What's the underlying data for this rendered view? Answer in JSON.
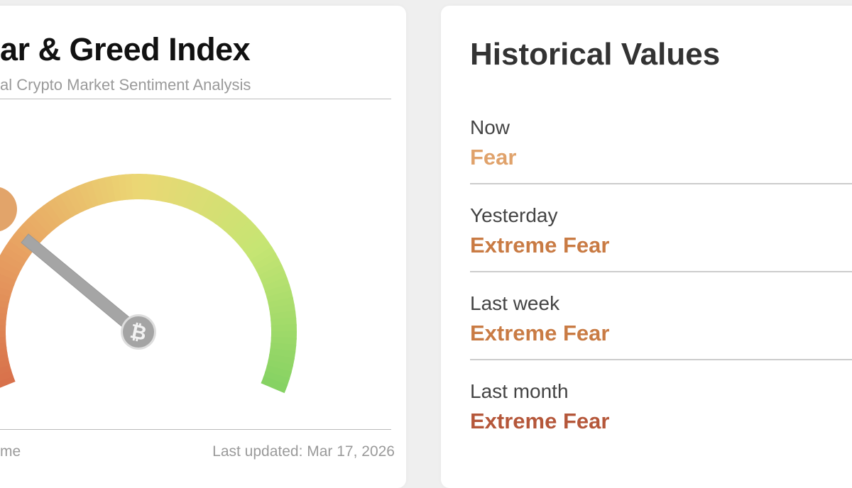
{
  "gauge_card": {
    "title": "ar & Greed Index",
    "subtitle": "al Crypto Market Sentiment Analysis",
    "footer_left": "me",
    "last_updated": "Last updated: Mar 17, 2026",
    "needle_icon": "bitcoin-icon",
    "gauge_colors": [
      "#d8714b",
      "#e8a262",
      "#ebd774",
      "#c6e573",
      "#86d263"
    ]
  },
  "history_card": {
    "title": "Historical Values",
    "rows": [
      {
        "label": "Now",
        "value": "Fear",
        "color": "#e0a26b"
      },
      {
        "label": "Yesterday",
        "value": "Extreme Fear",
        "color": "#c97b44"
      },
      {
        "label": "Last week",
        "value": "Extreme Fear",
        "color": "#c97b44"
      },
      {
        "label": "Last month",
        "value": "Extreme Fear",
        "color": "#b5573a"
      }
    ]
  }
}
